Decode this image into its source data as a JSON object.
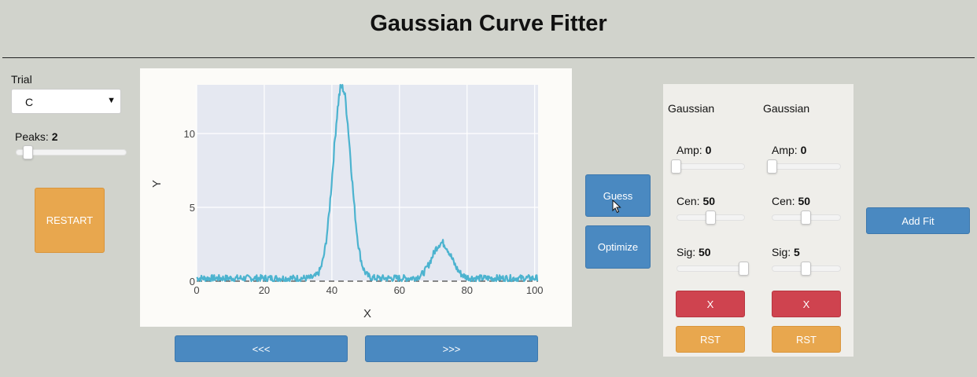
{
  "app": {
    "title": "Gaussian Curve Fitter"
  },
  "controls": {
    "trial_label": "Trial",
    "trial_value": "C",
    "peaks_label": "Peaks:",
    "peaks_value": "2",
    "restart_label": "RESTART"
  },
  "actions": {
    "guess_label": "Guess",
    "optimize_label": "Optimize",
    "add_fit_label": "Add Fit"
  },
  "nav": {
    "prev_label": "<<<",
    "next_label": ">>>"
  },
  "gaussians": [
    {
      "header": "Gaussian",
      "amp_label": "Amp:",
      "amp_value": "0",
      "cen_label": "Cen:",
      "cen_value": "50",
      "sig_label": "Sig:",
      "sig_value": "50",
      "remove_label": "X",
      "reset_label": "RST"
    },
    {
      "header": "Gaussian",
      "amp_label": "Amp:",
      "amp_value": "0",
      "cen_label": "Cen:",
      "cen_value": "50",
      "sig_label": "Sig:",
      "sig_value": "5",
      "remove_label": "X",
      "reset_label": "RST"
    }
  ],
  "chart_data": {
    "type": "line",
    "xlabel": "X",
    "ylabel": "Y",
    "xlim": [
      0,
      101
    ],
    "ylim": [
      0,
      13.3
    ],
    "x_ticks": [
      "0",
      "20",
      "40",
      "60",
      "80",
      "100"
    ],
    "y_ticks": [
      "0",
      "5",
      "10"
    ],
    "grid": true,
    "line_color": "#4cb3cf",
    "series": [
      {
        "values_description_free": true,
        "peaks": [
          {
            "amplitude": 13,
            "center": 43,
            "sigma": 2.6
          },
          {
            "amplitude": 2.4,
            "center": 72.5,
            "sigma": 2.8
          }
        ],
        "baseline": 0.2
      }
    ],
    "fit_line": {
      "y": 0
    }
  }
}
